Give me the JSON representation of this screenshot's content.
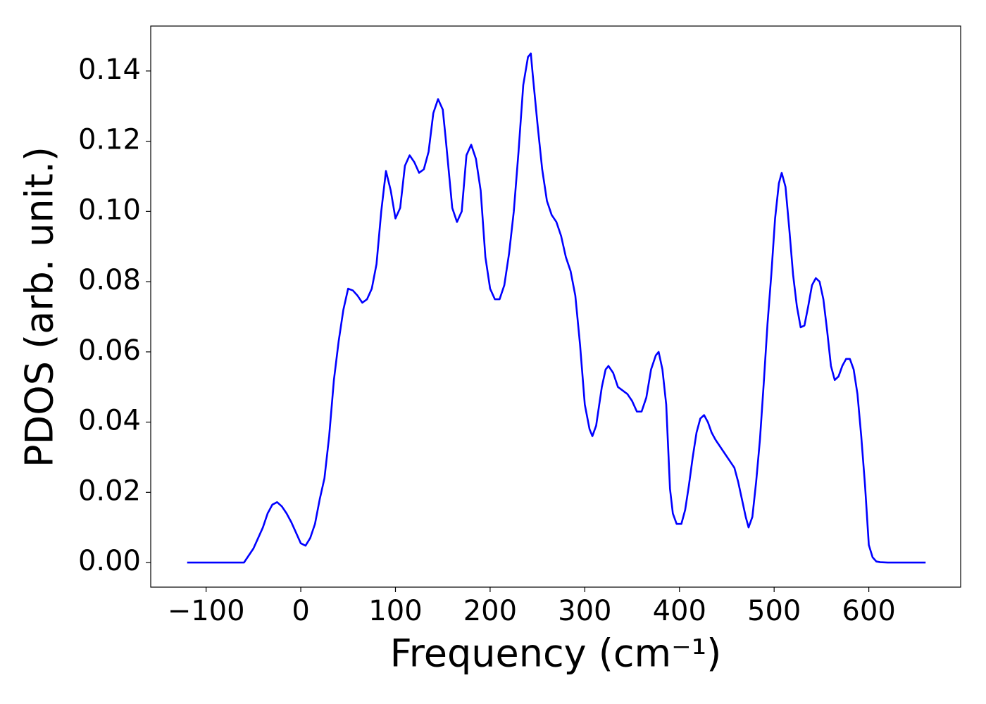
{
  "chart_data": {
    "type": "line",
    "xlabel": "Frequency (cm⁻¹)",
    "ylabel": "PDOS (arb. unit.)",
    "x": [
      -120,
      -60,
      -55,
      -50,
      -45,
      -40,
      -35,
      -30,
      -25,
      -20,
      -15,
      -10,
      -5,
      0,
      5,
      10,
      15,
      20,
      25,
      30,
      35,
      40,
      45,
      50,
      55,
      60,
      65,
      70,
      75,
      80,
      85,
      88,
      90,
      95,
      100,
      105,
      110,
      115,
      120,
      125,
      130,
      135,
      140,
      145,
      150,
      153,
      160,
      165,
      170,
      175,
      180,
      185,
      190,
      195,
      200,
      205,
      210,
      215,
      220,
      225,
      230,
      235,
      240,
      243,
      245,
      250,
      255,
      260,
      265,
      270,
      275,
      280,
      285,
      290,
      295,
      300,
      305,
      308,
      312,
      318,
      322,
      325,
      330,
      335,
      340,
      345,
      350,
      355,
      360,
      365,
      370,
      375,
      378,
      382,
      386,
      390,
      393,
      397,
      402,
      406,
      410,
      414,
      418,
      422,
      426,
      430,
      434,
      438,
      443,
      448,
      453,
      458,
      462,
      466,
      470,
      473,
      477,
      481,
      485,
      489,
      493,
      497,
      501,
      505,
      508,
      512,
      516,
      520,
      524,
      528,
      532,
      536,
      540,
      544,
      548,
      552,
      556,
      560,
      564,
      568,
      572,
      576,
      580,
      584,
      588,
      592,
      596,
      600,
      604,
      608,
      612,
      620,
      660
    ],
    "series": [
      {
        "name": "PDOS",
        "color": "#0000ff",
        "values": [
          0,
          0,
          0.002,
          0.004,
          0.007,
          0.01,
          0.014,
          0.0165,
          0.0172,
          0.016,
          0.014,
          0.0115,
          0.0085,
          0.0055,
          0.0048,
          0.007,
          0.011,
          0.018,
          0.024,
          0.036,
          0.052,
          0.063,
          0.072,
          0.078,
          0.0775,
          0.076,
          0.074,
          0.075,
          0.078,
          0.085,
          0.1,
          0.107,
          0.1115,
          0.106,
          0.098,
          0.101,
          0.113,
          0.116,
          0.114,
          0.111,
          0.112,
          0.117,
          0.128,
          0.132,
          0.129,
          0.121,
          0.101,
          0.097,
          0.1,
          0.116,
          0.119,
          0.115,
          0.106,
          0.087,
          0.078,
          0.075,
          0.075,
          0.079,
          0.088,
          0.1,
          0.117,
          0.136,
          0.144,
          0.145,
          0.139,
          0.125,
          0.112,
          0.103,
          0.099,
          0.097,
          0.093,
          0.087,
          0.083,
          0.076,
          0.062,
          0.045,
          0.038,
          0.036,
          0.039,
          0.05,
          0.055,
          0.056,
          0.054,
          0.05,
          0.049,
          0.048,
          0.046,
          0.043,
          0.043,
          0.047,
          0.055,
          0.059,
          0.06,
          0.055,
          0.045,
          0.021,
          0.014,
          0.011,
          0.011,
          0.015,
          0.022,
          0.03,
          0.037,
          0.041,
          0.042,
          0.04,
          0.037,
          0.035,
          0.033,
          0.031,
          0.029,
          0.027,
          0.023,
          0.018,
          0.013,
          0.01,
          0.013,
          0.023,
          0.035,
          0.051,
          0.068,
          0.082,
          0.098,
          0.108,
          0.111,
          0.107,
          0.095,
          0.082,
          0.073,
          0.067,
          0.0675,
          0.073,
          0.079,
          0.081,
          0.08,
          0.075,
          0.066,
          0.056,
          0.052,
          0.053,
          0.056,
          0.058,
          0.058,
          0.055,
          0.048,
          0.036,
          0.022,
          0.005,
          0.0015,
          0.0003,
          0.0001,
          0,
          0
        ]
      }
    ],
    "xlim": [
      -158.5,
      697
    ],
    "ylim": [
      -0.007,
      0.1528
    ],
    "xticks": [
      {
        "value": -100,
        "label": "−100"
      },
      0,
      100,
      200,
      300,
      400,
      500,
      600
    ],
    "yticks": [
      {
        "value": 0,
        "label": "0.00"
      },
      0.02,
      0.04,
      0.06,
      0.08,
      {
        "value": 0.1,
        "label": "0.10"
      },
      0.12,
      0.14
    ]
  }
}
